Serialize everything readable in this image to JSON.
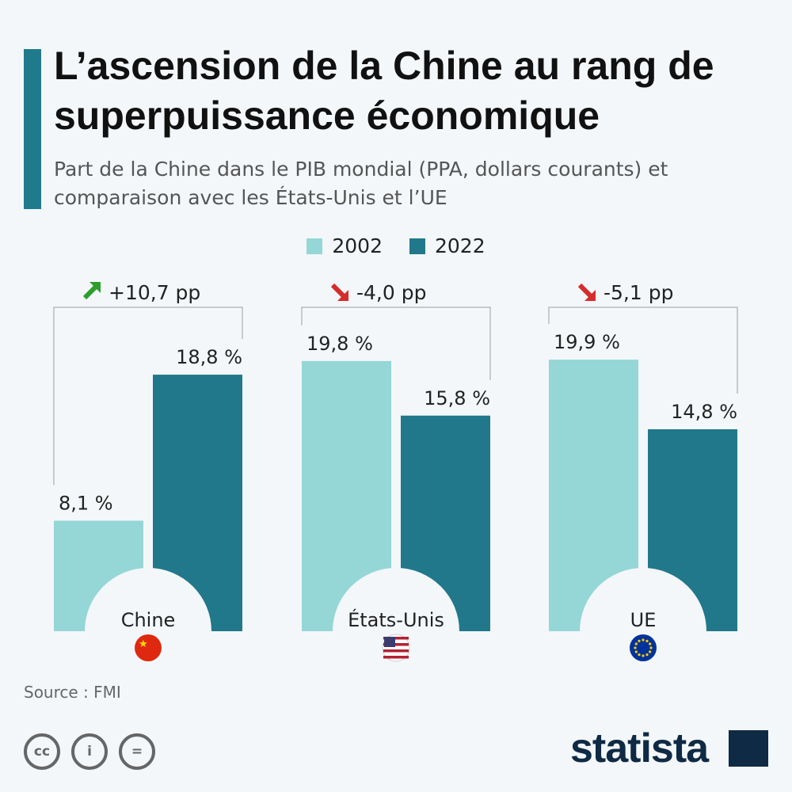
{
  "header": {
    "title": "L’ascension de la Chine au rang de superpuissance économique",
    "subtitle": "Part de la Chine dans le PIB mondial (PPA, dollars courants) et comparaison avec les États-Unis et l’UE"
  },
  "colors": {
    "2002": "#95d6d6",
    "2022": "#21788a",
    "up": "#2e9e2e",
    "down": "#d62c2c",
    "accent": "#1f7a8c"
  },
  "chart_data": {
    "type": "bar",
    "categories": [
      "Chine",
      "États-Unis",
      "UE"
    ],
    "series": [
      {
        "name": "2002",
        "values": [
          8.1,
          19.8,
          19.9
        ]
      },
      {
        "name": "2022",
        "values": [
          18.8,
          15.8,
          14.8
        ]
      }
    ],
    "data_labels": [
      [
        "8,1 %",
        "18,8 %"
      ],
      [
        "19,8 %",
        "15,8 %"
      ],
      [
        "19,9 %",
        "14,8 %"
      ]
    ],
    "changes": [
      {
        "label": "+10,7 pp",
        "direction": "up"
      },
      {
        "label": "-4,0 pp",
        "direction": "down"
      },
      {
        "label": "-5,1 pp",
        "direction": "down"
      }
    ],
    "flags": [
      "china-flag-icon",
      "usa-flag-icon",
      "eu-flag-icon"
    ],
    "legend": "top-center",
    "grid": false,
    "ylim": [
      0,
      20
    ]
  },
  "footer": {
    "source": "Source : FMI",
    "cc_labels": [
      "cc",
      "i",
      "="
    ],
    "logo": "statista"
  }
}
